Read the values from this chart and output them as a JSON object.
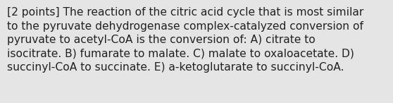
{
  "lines": [
    "[2 points] The reaction of the citric acid cycle that is most similar",
    "to the pyruvate dehydrogenase complex-catalyzed conversion of",
    "pyruvate to acetyl-CoA is the conversion of: A) citrate to",
    "isocitrate. B) fumarate to malate. C) malate to oxaloacetate. D)",
    "succinyl-CoA to succinate. E) a-ketoglutarate to succinyl-CoA."
  ],
  "background_color": "#e5e5e5",
  "text_color": "#222222",
  "font_size": 11.2,
  "figwidth": 5.58,
  "figheight": 1.46
}
